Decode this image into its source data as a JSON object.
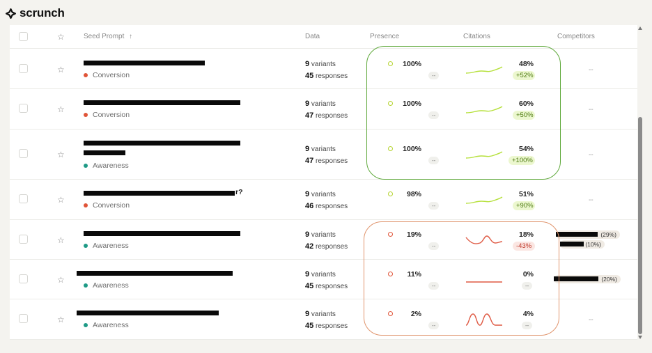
{
  "brand": {
    "name": "scrunch",
    "logo_icon": "scrunch-logo-icon"
  },
  "table": {
    "columns": {
      "seed_prompt": "Seed Prompt",
      "sort_icon": "↑",
      "data": "Data",
      "presence": "Presence",
      "citations": "Citations",
      "competitors": "Competitors"
    },
    "star_icon": "☆",
    "colors": {
      "conversion": "#e05438",
      "awareness": "#1e9a86",
      "presence_good": "#b5d32f",
      "presence_bad": "#e05438",
      "spark_good": "#b5e03a",
      "spark_bad": "#df5a44",
      "highlight_good": "#5ea83a",
      "highlight_bad": "#e0946c"
    },
    "rows": [
      {
        "prompt_visible": "",
        "tag": "Conversion",
        "tag_color": "#e05438",
        "variants_count": "9",
        "variants_label": "variants",
        "responses_count": "45",
        "responses_label": "responses",
        "presence_pct": "100%",
        "presence_sub": "--",
        "citations_pct": "48%",
        "citations_delta": "+52%",
        "trend": "up",
        "competitors": "--"
      },
      {
        "prompt_visible": "",
        "tag": "Conversion",
        "tag_color": "#e05438",
        "variants_count": "9",
        "variants_label": "variants",
        "responses_count": "47",
        "responses_label": "responses",
        "presence_pct": "100%",
        "presence_sub": "--",
        "citations_pct": "60%",
        "citations_delta": "+50%",
        "trend": "up",
        "competitors": "--"
      },
      {
        "prompt_visible": "",
        "tag": "Awareness",
        "tag_color": "#1e9a86",
        "variants_count": "9",
        "variants_label": "variants",
        "responses_count": "47",
        "responses_label": "responses",
        "presence_pct": "100%",
        "presence_sub": "--",
        "citations_pct": "54%",
        "citations_delta": "+100%",
        "trend": "up",
        "competitors": "--"
      },
      {
        "prompt_visible": "r?",
        "tag": "Conversion",
        "tag_color": "#e05438",
        "variants_count": "9",
        "variants_label": "variants",
        "responses_count": "46",
        "responses_label": "responses",
        "presence_pct": "98%",
        "presence_sub": "--",
        "citations_pct": "51%",
        "citations_delta": "+90%",
        "trend": "up",
        "competitors": "--"
      },
      {
        "prompt_visible": "",
        "tag": "Awareness",
        "tag_color": "#1e9a86",
        "variants_count": "9",
        "variants_label": "variants",
        "responses_count": "42",
        "responses_label": "responses",
        "presence_pct": "19%",
        "presence_sub": "--",
        "citations_pct": "18%",
        "citations_delta": "-43%",
        "trend": "down",
        "competitors": "",
        "competitor_pills": [
          "(29%)",
          "(10%)"
        ]
      },
      {
        "prompt_visible": "",
        "tag": "Awareness",
        "tag_color": "#1e9a86",
        "variants_count": "9",
        "variants_label": "variants",
        "responses_count": "45",
        "responses_label": "responses",
        "presence_pct": "11%",
        "presence_sub": "--",
        "citations_pct": "0%",
        "citations_delta": "--",
        "trend": "flat",
        "competitors": "",
        "competitor_pills": [
          "(20%)"
        ]
      },
      {
        "prompt_visible": "",
        "tag": "Awareness",
        "tag_color": "#1e9a86",
        "variants_count": "9",
        "variants_label": "variants",
        "responses_count": "45",
        "responses_label": "responses",
        "presence_pct": "2%",
        "presence_sub": "--",
        "citations_pct": "4%",
        "citations_delta": "--",
        "trend": "wave",
        "competitors": "--"
      }
    ]
  }
}
